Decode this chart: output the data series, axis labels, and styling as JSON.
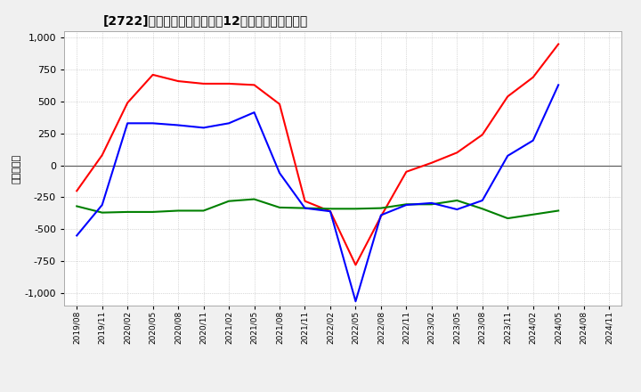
{
  "title": "[2722]　キャッシュフローの12か月移動合計の推移",
  "ylabel": "（百万円）",
  "ylim": [
    -1100,
    1050
  ],
  "yticks": [
    -1000,
    -750,
    -500,
    -250,
    0,
    250,
    500,
    750,
    1000
  ],
  "x_labels": [
    "2019/08",
    "2019/11",
    "2020/02",
    "2020/05",
    "2020/08",
    "2020/11",
    "2021/02",
    "2021/05",
    "2021/08",
    "2021/11",
    "2022/02",
    "2022/05",
    "2022/08",
    "2022/11",
    "2023/02",
    "2023/05",
    "2023/08",
    "2023/11",
    "2024/02",
    "2024/05",
    "2024/08",
    "2024/11"
  ],
  "operating_cf": [
    -200,
    80,
    490,
    710,
    660,
    640,
    640,
    630,
    480,
    -280,
    -360,
    -780,
    -400,
    -50,
    20,
    100,
    240,
    540,
    690,
    950,
    null,
    null
  ],
  "investing_cf": [
    -320,
    -370,
    -365,
    -365,
    -355,
    -355,
    -280,
    -265,
    -330,
    -335,
    -340,
    -340,
    -335,
    -305,
    -305,
    -275,
    -340,
    -415,
    -385,
    -355,
    null,
    null
  ],
  "free_cf": [
    -550,
    -310,
    330,
    330,
    315,
    295,
    330,
    415,
    -60,
    -335,
    -360,
    -1065,
    -390,
    -310,
    -295,
    -345,
    -275,
    75,
    195,
    630,
    null,
    null
  ],
  "operating_color": "#ff0000",
  "investing_color": "#008000",
  "free_color": "#0000ff",
  "line_width": 1.5,
  "background_color": "#f0f0f0",
  "plot_bg_color": "#ffffff",
  "grid_color": "#999999",
  "zero_line_color": "#555555",
  "spine_color": "#aaaaaa"
}
